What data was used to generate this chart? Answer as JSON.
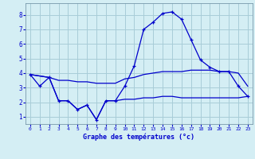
{
  "xlabel": "Graphe des températures (°c)",
  "background_color": "#d4eef4",
  "grid_color": "#a8ccd8",
  "line_color": "#0000cc",
  "xlim": [
    -0.5,
    23.5
  ],
  "ylim": [
    0.5,
    8.8
  ],
  "x_ticks": [
    0,
    1,
    2,
    3,
    4,
    5,
    6,
    7,
    8,
    9,
    10,
    11,
    12,
    13,
    14,
    15,
    16,
    17,
    18,
    19,
    20,
    21,
    22,
    23
  ],
  "y_ticks": [
    1,
    2,
    3,
    4,
    5,
    6,
    7,
    8
  ],
  "curve1_x": [
    0,
    1,
    2,
    3,
    4,
    5,
    6,
    7,
    8,
    9,
    10,
    11,
    12,
    13,
    14,
    15,
    16,
    17,
    18,
    19,
    20,
    21,
    22,
    23
  ],
  "curve1_y": [
    3.9,
    3.1,
    3.7,
    2.1,
    2.1,
    1.5,
    1.8,
    0.8,
    2.1,
    2.1,
    3.1,
    4.5,
    7.0,
    7.5,
    8.1,
    8.2,
    7.7,
    6.3,
    4.9,
    4.4,
    4.1,
    4.1,
    3.1,
    2.4
  ],
  "curve2_x": [
    0,
    2,
    3,
    4,
    5,
    6,
    7,
    8,
    9,
    10,
    11,
    12,
    13,
    14,
    15,
    16,
    17,
    18,
    19,
    20,
    21,
    22,
    23
  ],
  "curve2_y": [
    3.9,
    3.7,
    3.5,
    3.5,
    3.4,
    3.4,
    3.3,
    3.3,
    3.3,
    3.6,
    3.7,
    3.9,
    4.0,
    4.1,
    4.1,
    4.1,
    4.2,
    4.2,
    4.2,
    4.1,
    4.1,
    4.0,
    3.1
  ],
  "curve3_x": [
    0,
    2,
    3,
    4,
    5,
    6,
    7,
    8,
    9,
    10,
    11,
    12,
    13,
    14,
    15,
    16,
    17,
    18,
    19,
    20,
    21,
    22,
    23
  ],
  "curve3_y": [
    3.9,
    3.7,
    2.1,
    2.1,
    1.5,
    1.8,
    0.8,
    2.1,
    2.1,
    2.2,
    2.2,
    2.3,
    2.3,
    2.4,
    2.4,
    2.3,
    2.3,
    2.3,
    2.3,
    2.3,
    2.3,
    2.3,
    2.4
  ]
}
